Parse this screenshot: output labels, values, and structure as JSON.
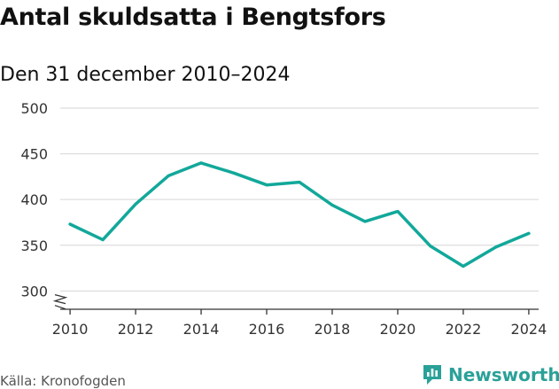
{
  "header": {
    "title": "Antal skuldsatta i Bengtsfors",
    "subtitle": "Den 31 december 2010–2024"
  },
  "footer": {
    "source": "Källa: Kronofogden",
    "brand": "Newsworthy",
    "brand_icon": "bar-chart-icon",
    "brand_color": "#2aa198"
  },
  "chart_data": {
    "type": "line",
    "x": [
      2010,
      2011,
      2012,
      2013,
      2014,
      2015,
      2016,
      2017,
      2018,
      2019,
      2020,
      2021,
      2022,
      2023,
      2024
    ],
    "series": [
      {
        "values": [
          373,
          356,
          395,
          426,
          440,
          429,
          416,
          419,
          394,
          376,
          387,
          349,
          327,
          348,
          363
        ],
        "color": "#12a89a"
      }
    ],
    "x_ticks": [
      "2010",
      "2012",
      "2014",
      "2016",
      "2018",
      "2020",
      "2022",
      "2024"
    ],
    "y_ticks": [
      "300",
      "350",
      "400",
      "450",
      "500"
    ],
    "ylim": [
      280,
      500
    ],
    "xlim": [
      2009.7,
      2024.3
    ],
    "axis_break": true,
    "grid": true
  }
}
